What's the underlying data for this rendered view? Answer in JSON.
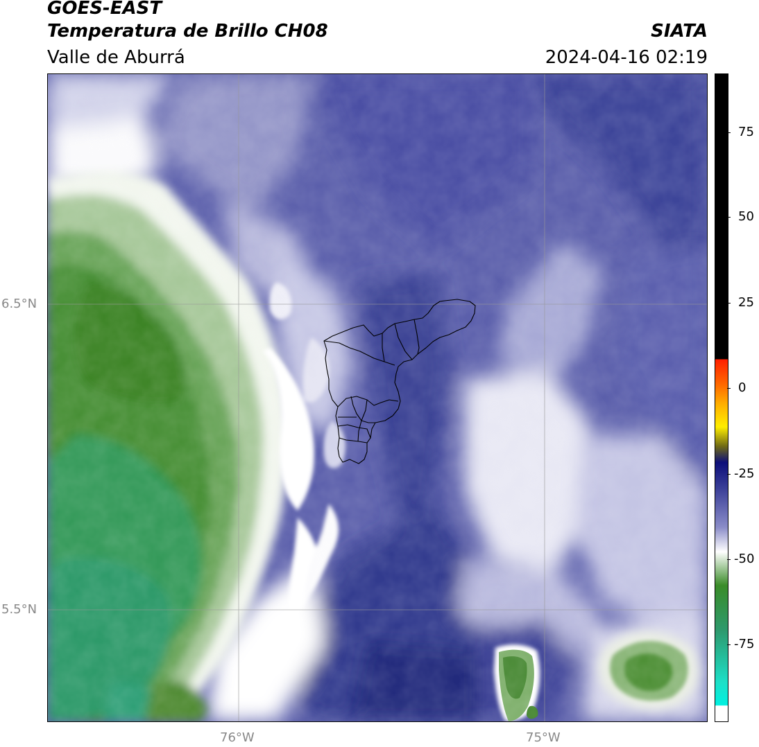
{
  "header": {
    "line1": "GOES-EAST",
    "line2": "Temperatura de Brillo CH08",
    "line3": "Valle de Aburrá",
    "org": "SIATA",
    "datetime": "2024-04-16 02:19"
  },
  "map": {
    "lon_labels": [
      "76°W",
      "75°W"
    ],
    "lat_labels": [
      "6.5°N",
      "5.5°N"
    ]
  },
  "colorbar": {
    "tick_labels": [
      "75",
      "50",
      "25",
      "0",
      "-25",
      "-50",
      "-75"
    ],
    "range": [
      -95,
      92
    ],
    "colors": {
      "warm_top": "#000000",
      "red": "#ff2000",
      "orange": "#ff8c00",
      "yellow": "#ffee00",
      "olive": "#6f6a16",
      "navy": "#0d0f7a",
      "periwinkle": "#8a8cc8",
      "white": "#ffffff",
      "green": "#3a8c28",
      "teal": "#2ea07c",
      "cyan": "#00e5d6"
    }
  }
}
